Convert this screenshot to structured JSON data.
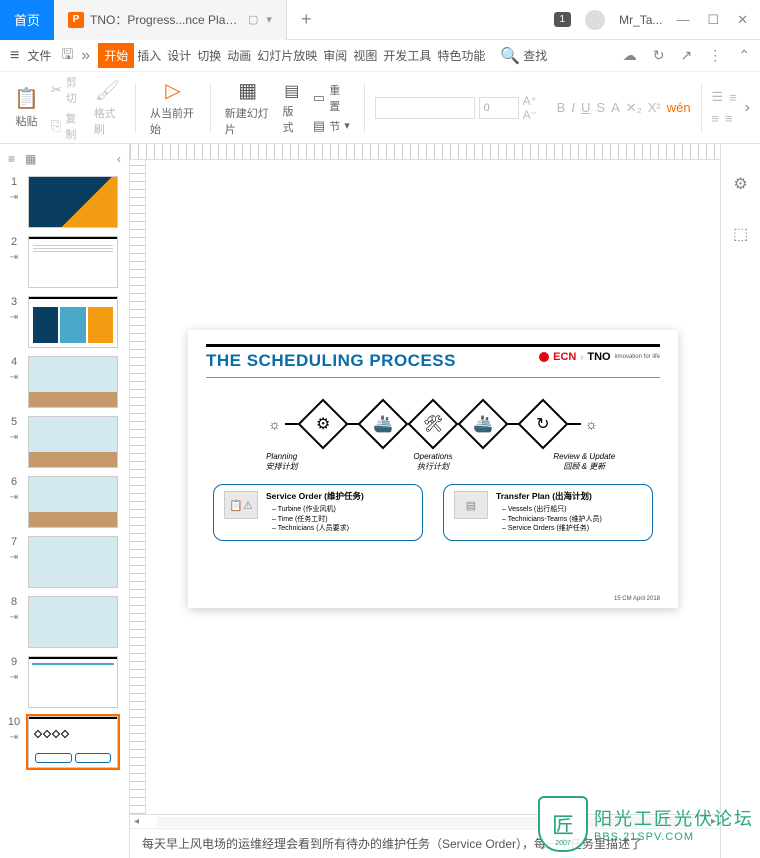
{
  "titlebar": {
    "home_tab": "首页",
    "doc_icon": "P",
    "doc_name": "TNO：Progress...nce Planning",
    "badge": "1",
    "user": "Mr_Ta...",
    "minimize": "—",
    "maximize": "☐",
    "close": "✕"
  },
  "menubar": {
    "file": "文件",
    "items": [
      "开始",
      "插入",
      "设计",
      "切换",
      "动画",
      "幻灯片放映",
      "审阅",
      "视图",
      "开发工具",
      "特色功能"
    ],
    "search": "查找"
  },
  "toolbar": {
    "cut": "剪切",
    "copy": "复制",
    "paste": "粘贴",
    "format_painter": "格式刷",
    "from_current": "从当前开始",
    "new_slide": "新建幻灯片",
    "layout": "版式",
    "section": "节",
    "reset": "重置",
    "font_placeholder": "",
    "size_placeholder": "0"
  },
  "thumbnails": {
    "count": 10,
    "selected": 10
  },
  "slide": {
    "title": "THE SCHEDULING PROCESS",
    "logo_ecn": "ECN",
    "logo_tno": "TNO",
    "logo_sub": "innovation for life",
    "flow": {
      "stage1_en": "Planning",
      "stage1_cn": "安排计划",
      "stage2_en": "Operations",
      "stage2_cn": "执行计划",
      "stage3_en": "Review & Update",
      "stage3_cn": "回顾 & 更新"
    },
    "box1": {
      "title": "Service Order (维护任务)",
      "items": [
        "Turbine (作业风机)",
        "Time (任务工时)",
        "Technicians (人员要求)"
      ]
    },
    "box2": {
      "title": "Transfer Plan (出海计划)",
      "items": [
        "Vessels (出行船只)",
        "Technicians-Teams (维护人员)",
        "Service Orders (维护任务)"
      ]
    },
    "footer": "15 CM April 2018"
  },
  "bottom_text": "每天早上风电场的运维经理会看到所有待办的维护任务（Service Order），每一个任务里描述了",
  "watermark": {
    "cn": "阳光工匠光伏论坛",
    "en": "BBS.21SPV.COM"
  }
}
